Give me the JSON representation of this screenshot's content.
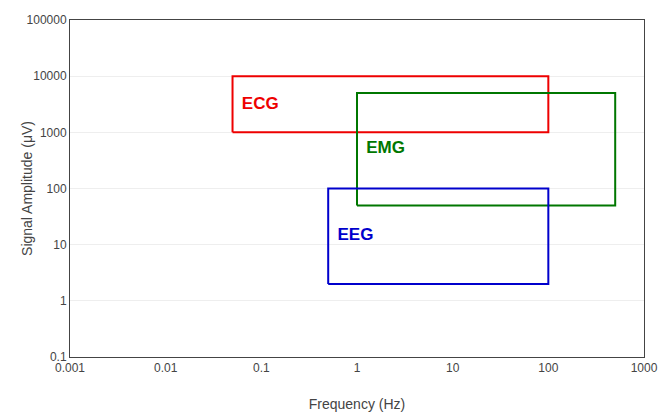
{
  "chart_data": {
    "type": "rectangle",
    "xlabel": "Frequency (Hz)",
    "ylabel": "Signal Amplitude (μV)",
    "log": true,
    "grid": "y",
    "xlim": [
      0.001,
      1000
    ],
    "ylim": [
      0.1,
      100000
    ],
    "xticks": [
      0.001,
      0.01,
      0.1,
      1,
      10,
      100,
      1000
    ],
    "yticks": [
      0.1,
      1,
      10,
      100,
      1000,
      10000,
      100000
    ],
    "series": [
      {
        "name": "ECG",
        "color": "#ee0000",
        "x": [
          0.05,
          100
        ],
        "y": [
          1000,
          10000
        ]
      },
      {
        "name": "EMG",
        "color": "#007700",
        "x": [
          1,
          500
        ],
        "y": [
          50,
          5000
        ]
      },
      {
        "name": "EEG",
        "color": "#0000cc",
        "x": [
          0.5,
          100
        ],
        "y": [
          2,
          100
        ]
      }
    ]
  }
}
